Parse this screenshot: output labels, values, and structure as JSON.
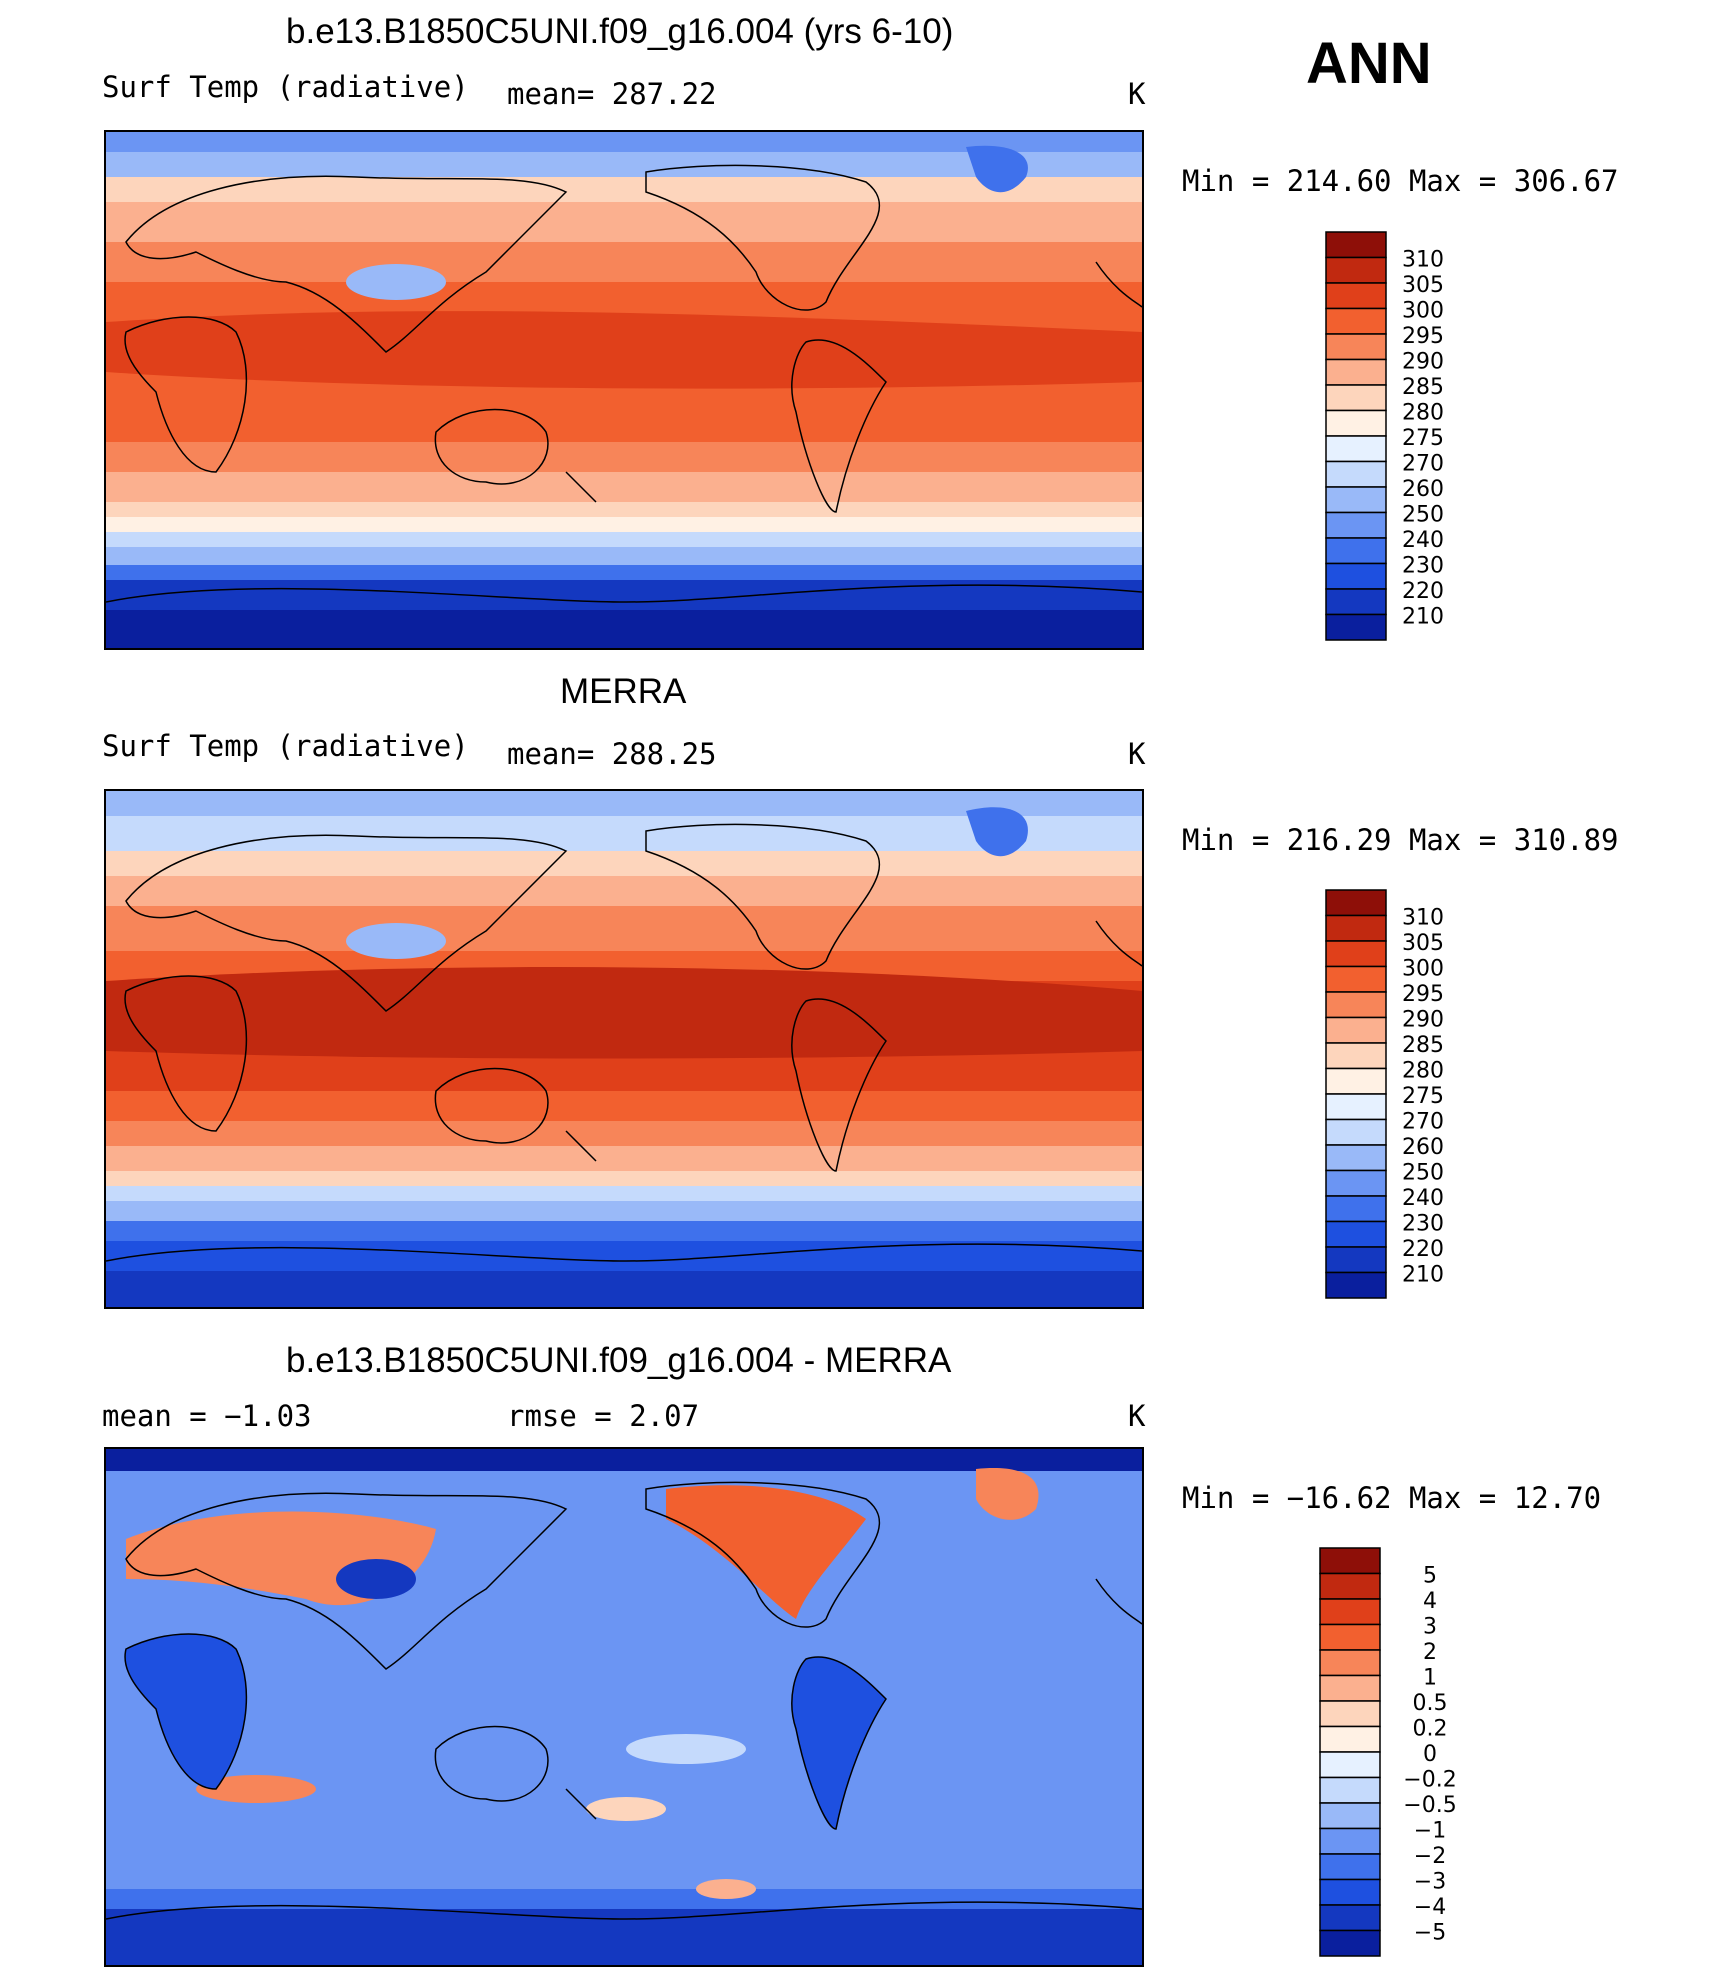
{
  "season": "ANN",
  "palette_temp": [
    "#000080",
    "#0a1f9e",
    "#1438c0",
    "#1e50e0",
    "#3f71ec",
    "#6b95f3",
    "#99b9f8",
    "#c5dafc",
    "#e6f1ff",
    "#fff1e4",
    "#fdd5bc",
    "#fbb08f",
    "#f78559",
    "#f2602f",
    "#e0401a",
    "#c12910",
    "#8e0f08"
  ],
  "panels": [
    {
      "title": "b.e13.B1850C5UNI.f09_g16.004 (yrs 6-10)",
      "left_label": "Surf Temp (radiative)",
      "center_label": "mean=  287.22",
      "units": "K",
      "minmax": "Min  =  214.60  Max  =  306.67"
    },
    {
      "title": "MERRA",
      "left_label": "Surf Temp (radiative)",
      "center_label": "mean=  288.25",
      "units": "K",
      "minmax": "Min  =  216.29  Max  =  310.89"
    },
    {
      "title": "b.e13.B1850C5UNI.f09_g16.004 - MERRA",
      "left_label": "mean  =    −1.03",
      "center_label": "rmse  =     2.07",
      "units": "K",
      "minmax": "Min  = −16.62  Max  =    12.70"
    }
  ],
  "chart_data": [
    {
      "type": "heatmap",
      "title": "b.e13.B1850C5UNI.f09_g16.004 (yrs 6-10)",
      "variable": "Surf Temp (radiative)",
      "units": "K",
      "mean": 287.22,
      "min": 214.6,
      "max": 306.67,
      "colorbar_levels": [
        310,
        305,
        300,
        295,
        290,
        285,
        280,
        275,
        270,
        260,
        250,
        240,
        230,
        220,
        210
      ]
    },
    {
      "type": "heatmap",
      "title": "MERRA",
      "variable": "Surf Temp (radiative)",
      "units": "K",
      "mean": 288.25,
      "min": 216.29,
      "max": 310.89,
      "colorbar_levels": [
        310,
        305,
        300,
        295,
        290,
        285,
        280,
        275,
        270,
        260,
        250,
        240,
        230,
        220,
        210
      ]
    },
    {
      "type": "heatmap",
      "title": "b.e13.B1850C5UNI.f09_g16.004 - MERRA",
      "units": "K",
      "mean": -1.03,
      "rmse": 2.07,
      "min": -16.62,
      "max": 12.7,
      "colorbar_levels": [
        "5",
        "4",
        "3",
        "2",
        "1",
        "0.5",
        "0.2",
        "0",
        "−0.2",
        "−0.5",
        "−1",
        "−2",
        "−3",
        "−4",
        "−5"
      ]
    }
  ]
}
